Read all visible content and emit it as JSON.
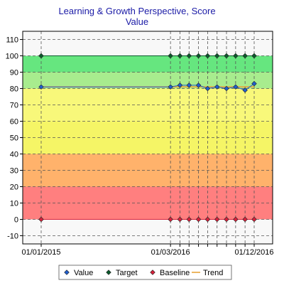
{
  "chart_data": {
    "type": "line",
    "title": "Learning & Growth Perspective, Score",
    "subtitle": "Value",
    "xlabel": "",
    "ylabel": "",
    "ylim": [
      -15,
      115
    ],
    "yticks": [
      -10,
      0,
      10,
      20,
      30,
      40,
      50,
      60,
      70,
      80,
      90,
      100,
      110
    ],
    "x_tick_labels": [
      {
        "date": "2015-01-01",
        "label": "01/01/2015"
      },
      {
        "date": "2016-03-01",
        "label": "01/03/2016"
      },
      {
        "date": "2016-12-01",
        "label": "01/12/2016"
      }
    ],
    "x_dates": [
      "2015-01-01",
      "2016-03-01",
      "2016-04-01",
      "2016-05-01",
      "2016-06-01",
      "2016-07-01",
      "2016-08-01",
      "2016-09-01",
      "2016-10-01",
      "2016-11-01",
      "2016-12-01"
    ],
    "grid": true,
    "legend_position": "bottom",
    "bands": [
      {
        "from": 90,
        "to": 100,
        "color": "#66e67f"
      },
      {
        "from": 80,
        "to": 90,
        "color": "#a8ec8e"
      },
      {
        "from": 60,
        "to": 80,
        "color": "#f8f87a"
      },
      {
        "from": 40,
        "to": 60,
        "color": "#f5f566"
      },
      {
        "from": 20,
        "to": 40,
        "color": "#ffb26b"
      },
      {
        "from": 0,
        "to": 20,
        "color": "#ff7f7f"
      }
    ],
    "series": [
      {
        "name": "Value",
        "color": "#1f5fcf",
        "marker": "diamond",
        "points": [
          {
            "x": "2015-01-01",
            "y": 81
          },
          {
            "x": "2016-03-01",
            "y": 81
          },
          {
            "x": "2016-04-01",
            "y": 82
          },
          {
            "x": "2016-05-01",
            "y": 82
          },
          {
            "x": "2016-06-01",
            "y": 82
          },
          {
            "x": "2016-07-01",
            "y": 80
          },
          {
            "x": "2016-08-01",
            "y": 81
          },
          {
            "x": "2016-09-01",
            "y": 80
          },
          {
            "x": "2016-10-01",
            "y": 81
          },
          {
            "x": "2016-11-01",
            "y": 79
          },
          {
            "x": "2016-12-01",
            "y": 83
          }
        ]
      },
      {
        "name": "Target",
        "color": "#0b5a2c",
        "marker": "diamond",
        "points": [
          {
            "x": "2015-01-01",
            "y": 100
          },
          {
            "x": "2016-03-01",
            "y": 100
          },
          {
            "x": "2016-04-01",
            "y": 100
          },
          {
            "x": "2016-05-01",
            "y": 100
          },
          {
            "x": "2016-06-01",
            "y": 100
          },
          {
            "x": "2016-07-01",
            "y": 100
          },
          {
            "x": "2016-08-01",
            "y": 100
          },
          {
            "x": "2016-09-01",
            "y": 100
          },
          {
            "x": "2016-10-01",
            "y": 100
          },
          {
            "x": "2016-11-01",
            "y": 100
          },
          {
            "x": "2016-12-01",
            "y": 100
          }
        ]
      },
      {
        "name": "Baseline",
        "color": "#d6203a",
        "marker": "diamond",
        "points": [
          {
            "x": "2015-01-01",
            "y": 0
          },
          {
            "x": "2016-03-01",
            "y": 0
          },
          {
            "x": "2016-04-01",
            "y": 0
          },
          {
            "x": "2016-05-01",
            "y": 0
          },
          {
            "x": "2016-06-01",
            "y": 0
          },
          {
            "x": "2016-07-01",
            "y": 0
          },
          {
            "x": "2016-08-01",
            "y": 0
          },
          {
            "x": "2016-09-01",
            "y": 0
          },
          {
            "x": "2016-10-01",
            "y": 0
          },
          {
            "x": "2016-11-01",
            "y": 0
          },
          {
            "x": "2016-12-01",
            "y": 0
          }
        ]
      },
      {
        "name": "Trend",
        "color": "#e8a33a",
        "marker": "none",
        "points": [
          {
            "x": "2015-01-01",
            "y": 81
          },
          {
            "x": "2016-12-01",
            "y": 81
          }
        ]
      }
    ]
  },
  "legend": {
    "items": [
      {
        "label": "Value",
        "color": "#1f5fcf",
        "marker": "diamond"
      },
      {
        "label": "Target",
        "color": "#0b5a2c",
        "marker": "diamond"
      },
      {
        "label": "Baseline",
        "color": "#d6203a",
        "marker": "diamond"
      },
      {
        "label": "Trend",
        "color": "#e8a33a",
        "marker": "line"
      }
    ]
  },
  "colors": {
    "title": "#1a1aa6",
    "axis": "#000000",
    "grid": "#555555",
    "plot_bg": "#f8f8f8"
  }
}
